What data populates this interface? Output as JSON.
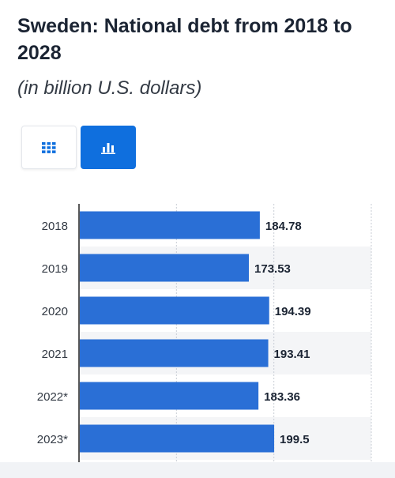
{
  "header": {
    "title": "Sweden: National debt from 2018 to 2028",
    "subtitle": "(in billion U.S. dollars)"
  },
  "toolbar": {
    "table_view_icon": "table-grid-icon",
    "chart_view_icon": "bar-chart-icon",
    "active_view": "chart"
  },
  "colors": {
    "bar": "#2a6fd6",
    "active_button": "#0f6fde",
    "band": "#f4f5f7"
  },
  "chart_data": {
    "type": "bar",
    "orientation": "horizontal",
    "title": "Sweden: National debt from 2018 to 2028",
    "subtitle": "(in billion U.S. dollars)",
    "categories": [
      "2018",
      "2019",
      "2020",
      "2021",
      "2022*",
      "2023*"
    ],
    "values": [
      184.78,
      173.53,
      194.39,
      193.41,
      183.36,
      199.5
    ],
    "value_labels": [
      "184.78",
      "173.53",
      "194.39",
      "193.41",
      "183.36",
      "199.5"
    ],
    "xlim": [
      0,
      300
    ],
    "grid": true
  }
}
